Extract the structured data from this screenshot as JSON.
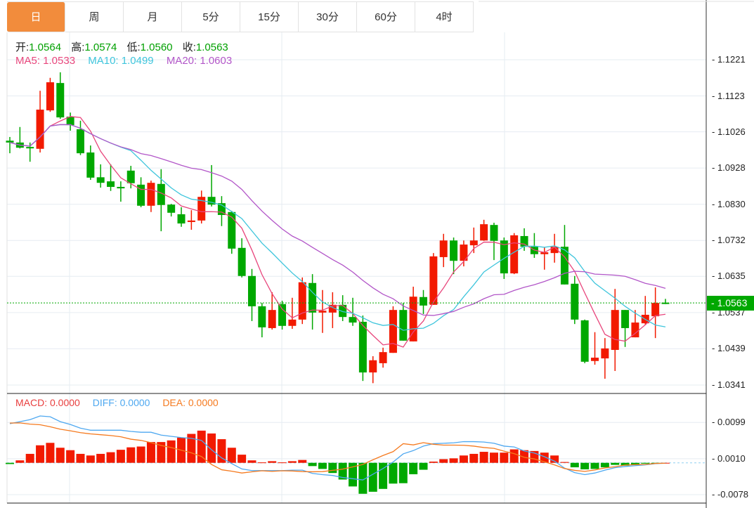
{
  "tabs": [
    {
      "label": "日",
      "active": true
    },
    {
      "label": "周"
    },
    {
      "label": "月"
    },
    {
      "label": "5分"
    },
    {
      "label": "15分"
    },
    {
      "label": "30分"
    },
    {
      "label": "60分"
    },
    {
      "label": "4时"
    }
  ],
  "ohlc_legend": {
    "open_label": "开:",
    "open": "1.0564",
    "high_label": "高:",
    "high": "1.0574",
    "low_label": "低:",
    "low": "1.0560",
    "close_label": "收:",
    "close": "1.0563"
  },
  "ma_legend": {
    "ma5": "MA5: 1.0533",
    "ma10": "MA10: 1.0499",
    "ma20": "MA20: 1.0603"
  },
  "macd_legend": {
    "macd": "MACD: 0.0000",
    "diff": "DIFF: 0.0000",
    "dea": "DEA: 0.0000"
  },
  "last_price": "1.0563",
  "colors": {
    "up": "#f21a00",
    "down": "#00a800",
    "ma5": "#e8467c",
    "ma10": "#3ec5dc",
    "ma20": "#b256c8",
    "diff": "#4ea8f0",
    "dea": "#f57a1f",
    "tab_active": "#f28c3c"
  },
  "chart_data": [
    {
      "type": "candlestick",
      "title": "",
      "ylim": [
        1.0341,
        1.1221
      ],
      "yticks": [
        "1.1221",
        "1.1123",
        "1.1026",
        "1.0928",
        "1.0830",
        "1.0732",
        "1.0635",
        "1.0537",
        "1.0439",
        "1.0341"
      ],
      "last_price": 1.0563,
      "ma_periods": [
        5,
        10,
        20
      ],
      "ohlc": [
        [
          1.1002,
          1.0997,
          1.1012,
          1.0968
        ],
        [
          1.0997,
          1.0983,
          1.1039,
          1.0981
        ],
        [
          1.0985,
          1.0982,
          1.0997,
          1.0945
        ],
        [
          1.098,
          1.1086,
          1.1137,
          1.097
        ],
        [
          1.1084,
          1.116,
          1.1172,
          1.108
        ],
        [
          1.1158,
          1.1065,
          1.1187,
          1.1061
        ],
        [
          1.1067,
          1.1044,
          1.1078,
          1.1029
        ],
        [
          1.1033,
          1.0968,
          1.1056,
          1.0963
        ],
        [
          1.097,
          1.0902,
          1.0989,
          1.0896
        ],
        [
          1.0903,
          1.0888,
          1.0938,
          1.0875
        ],
        [
          1.0892,
          1.0877,
          1.0938,
          1.0866
        ],
        [
          1.0877,
          1.0873,
          1.0892,
          1.0837
        ],
        [
          1.0921,
          1.0887,
          1.0934,
          1.0873
        ],
        [
          1.0883,
          1.0826,
          1.0903,
          1.0822
        ],
        [
          1.0826,
          1.0888,
          1.0894,
          1.0809
        ],
        [
          1.0885,
          1.0828,
          1.0925,
          1.0757
        ],
        [
          1.0829,
          1.0807,
          1.0831,
          1.0797
        ],
        [
          1.0803,
          1.0778,
          1.0822,
          1.0769
        ],
        [
          1.0782,
          1.0786,
          1.0814,
          1.0761
        ],
        [
          1.0786,
          1.085,
          1.0867,
          1.0778
        ],
        [
          1.085,
          1.0829,
          1.0936,
          1.0824
        ],
        [
          1.0833,
          1.0801,
          1.0852,
          1.0771
        ],
        [
          1.0809,
          1.071,
          1.0812,
          1.0696
        ],
        [
          1.0712,
          1.0636,
          1.0738,
          1.0632
        ],
        [
          1.0636,
          1.0554,
          1.0655,
          1.0514
        ],
        [
          1.0554,
          1.0497,
          1.0563,
          1.047
        ],
        [
          1.0495,
          1.0544,
          1.0592,
          1.0491
        ],
        [
          1.056,
          1.0501,
          1.0569,
          1.0491
        ],
        [
          1.0501,
          1.0518,
          1.0577,
          1.0493
        ],
        [
          1.0518,
          1.0619,
          1.0632,
          1.0506
        ],
        [
          1.0617,
          1.0537,
          1.0641,
          1.0491
        ],
        [
          1.0537,
          1.0542,
          1.0598,
          1.0482
        ],
        [
          1.0537,
          1.0558,
          1.0592,
          1.0495
        ],
        [
          1.0558,
          1.0525,
          1.0584,
          1.0514
        ],
        [
          1.0525,
          1.051,
          1.0577,
          1.0501
        ],
        [
          1.0512,
          1.0375,
          1.0529,
          1.0352
        ],
        [
          1.0375,
          1.0408,
          1.0419,
          1.0346
        ],
        [
          1.04,
          1.043,
          1.0442,
          1.0388
        ],
        [
          1.0428,
          1.0544,
          1.0554,
          1.0428
        ],
        [
          1.0544,
          1.0461,
          1.0563,
          1.0461
        ],
        [
          1.0459,
          1.058,
          1.0607,
          1.0459
        ],
        [
          1.0579,
          1.0556,
          1.0598,
          1.0533
        ],
        [
          1.0558,
          1.0689,
          1.0698,
          1.0558
        ],
        [
          1.0687,
          1.0732,
          1.075,
          1.066
        ],
        [
          1.0732,
          1.0677,
          1.074,
          1.0641
        ],
        [
          1.0677,
          1.0721,
          1.0732,
          1.0662
        ],
        [
          1.0719,
          1.0732,
          1.0767,
          1.0698
        ],
        [
          1.0732,
          1.0776,
          1.0788,
          1.0731
        ],
        [
          1.0774,
          1.0731,
          1.078,
          1.0679
        ],
        [
          1.0732,
          1.0643,
          1.074,
          1.0628
        ],
        [
          1.0643,
          1.0746,
          1.0752,
          1.0641
        ],
        [
          1.0744,
          1.0715,
          1.0765,
          1.0704
        ],
        [
          1.0715,
          1.0695,
          1.0752,
          1.0685
        ],
        [
          1.0695,
          1.07,
          1.0714,
          1.0653
        ],
        [
          1.0698,
          1.0715,
          1.075,
          1.0672
        ],
        [
          1.0715,
          1.0613,
          1.0774,
          1.0613
        ],
        [
          1.0615,
          1.0518,
          1.0636,
          1.0506
        ],
        [
          1.0516,
          1.0404,
          1.0518,
          1.04
        ],
        [
          1.0406,
          1.0415,
          1.0484,
          1.0396
        ],
        [
          1.0413,
          1.044,
          1.0468,
          1.0358
        ],
        [
          1.0436,
          1.0544,
          1.0601,
          1.0379
        ],
        [
          1.0544,
          1.0495,
          1.0544,
          1.0444
        ],
        [
          1.047,
          1.051,
          1.0544,
          1.047
        ],
        [
          1.0508,
          1.0531,
          1.0582,
          1.0504
        ],
        [
          1.0527,
          1.0563,
          1.0605,
          1.0468
        ],
        [
          1.0564,
          1.0563,
          1.0574,
          1.056
        ]
      ]
    },
    {
      "type": "bar+line",
      "title": "MACD",
      "ylim": [
        -0.0078,
        0.0099
      ],
      "yticks": [
        "0.0099",
        "0.0010",
        "-0.0078"
      ],
      "macd": [
        -0.0003,
        0.0006,
        0.0022,
        0.0043,
        0.0049,
        0.0037,
        0.0031,
        0.0022,
        0.0018,
        0.0022,
        0.0026,
        0.0032,
        0.0038,
        0.004,
        0.0051,
        0.0051,
        0.0055,
        0.0062,
        0.0071,
        0.0079,
        0.0072,
        0.0058,
        0.0037,
        0.002,
        0.0006,
        0.0001,
        0.0004,
        0.0001,
        0.0004,
        0.0007,
        -0.0008,
        -0.0015,
        -0.0025,
        -0.0041,
        -0.0058,
        -0.0076,
        -0.0071,
        -0.0064,
        -0.0051,
        -0.005,
        -0.0028,
        -0.0017,
        0.0003,
        0.0009,
        0.0011,
        0.0018,
        0.0022,
        0.0027,
        0.0025,
        0.0025,
        0.0033,
        0.0031,
        0.0029,
        0.0025,
        0.0018,
        0.0002,
        -0.0011,
        -0.0016,
        -0.0015,
        -0.0011,
        -0.0005,
        -0.0007,
        -0.0005,
        -0.0002,
        -0.0001,
        0.0
      ],
      "diff": [
        0.0096,
        0.0101,
        0.0106,
        0.0115,
        0.0113,
        0.0101,
        0.0094,
        0.0085,
        0.008,
        0.008,
        0.008,
        0.008,
        0.0077,
        0.0075,
        0.0075,
        0.0068,
        0.0065,
        0.0062,
        0.006,
        0.0055,
        0.0032,
        0.0012,
        -0.0002,
        -0.0015,
        -0.0019,
        -0.0019,
        -0.0019,
        -0.0019,
        -0.0018,
        -0.0018,
        -0.0026,
        -0.0029,
        -0.0031,
        -0.0036,
        -0.0039,
        -0.0042,
        -0.0028,
        -0.0014,
        0.0002,
        0.0022,
        0.003,
        0.0041,
        0.0047,
        0.0048,
        0.0049,
        0.0052,
        0.0052,
        0.0051,
        0.0048,
        0.0041,
        0.0039,
        0.0029,
        0.0024,
        0.0015,
        0.0004,
        -0.0013,
        -0.0024,
        -0.0029,
        -0.0025,
        -0.0018,
        -0.0012,
        -0.0009,
        -0.0007,
        -0.0005,
        -0.0002,
        -0.0001
      ]
    }
  ]
}
